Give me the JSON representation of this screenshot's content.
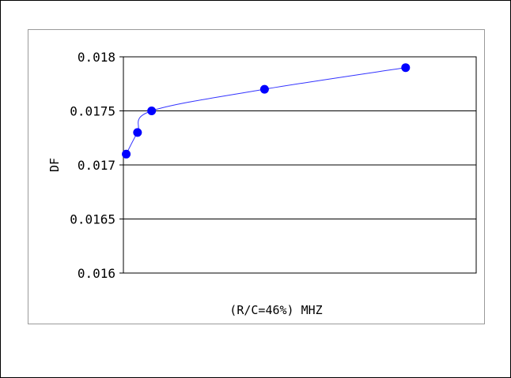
{
  "chart_data": {
    "type": "scatter",
    "title": "",
    "xlabel": "(R/C=46%) MHZ",
    "ylabel": "DF",
    "ylim": [
      0.016,
      0.018
    ],
    "yticks": [
      0.016,
      0.0165,
      0.017,
      0.0175,
      0.018
    ],
    "ytick_labels": [
      "0.016",
      "0.0165",
      "0.017",
      "0.0175",
      "0.018"
    ],
    "xlim": [
      0,
      12.5
    ],
    "grid": true,
    "legend": "none",
    "series": [
      {
        "points": [
          {
            "x": 0.1,
            "y": 0.0171
          },
          {
            "x": 0.5,
            "y": 0.0173
          },
          {
            "x": 1.0,
            "y": 0.0175
          },
          {
            "x": 5.0,
            "y": 0.0177
          },
          {
            "x": 10.0,
            "y": 0.0179
          }
        ],
        "marker_color": "#0000ff",
        "line_color": "#3333ff"
      }
    ]
  }
}
